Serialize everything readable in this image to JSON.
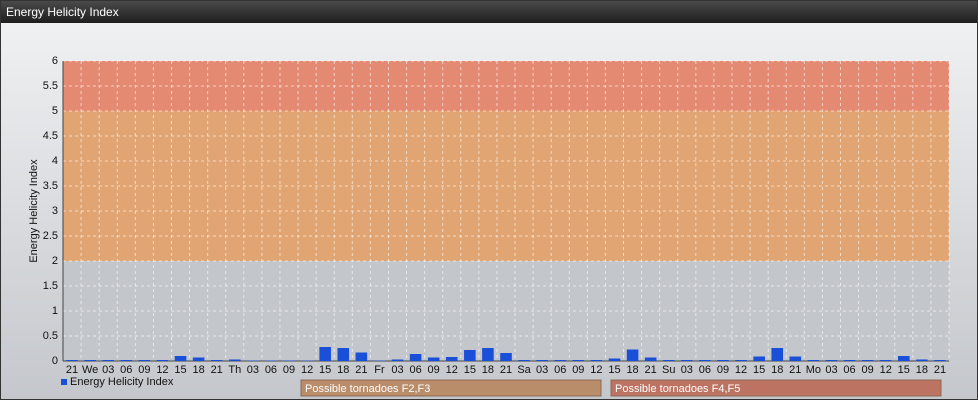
{
  "chart_data": {
    "type": "bar",
    "title": "Energy Helicity Index",
    "y_label": "Energy Helicity Index",
    "categories": [
      "21",
      "We",
      "03",
      "06",
      "09",
      "12",
      "15",
      "18",
      "21",
      "Th",
      "03",
      "06",
      "09",
      "12",
      "15",
      "18",
      "21",
      "Fr",
      "03",
      "06",
      "09",
      "12",
      "15",
      "18",
      "21",
      "Sa",
      "03",
      "06",
      "09",
      "12",
      "15",
      "18",
      "21",
      "Su",
      "03",
      "06",
      "09",
      "12",
      "15",
      "18",
      "21",
      "Mo",
      "03",
      "06",
      "09",
      "12",
      "15",
      "18",
      "21"
    ],
    "series": [
      {
        "name": "Energy Helicity Index",
        "color": "#1a4fd8",
        "values": [
          0.02,
          0.02,
          0.02,
          0.02,
          0.02,
          0.02,
          0.1,
          0.07,
          0.02,
          0.03,
          0.01,
          0.01,
          0.01,
          0.01,
          0.28,
          0.26,
          0.17,
          0.01,
          0.03,
          0.14,
          0.07,
          0.08,
          0.22,
          0.26,
          0.16,
          0.02,
          0.02,
          0.02,
          0.02,
          0.02,
          0.05,
          0.23,
          0.07,
          0.02,
          0.02,
          0.02,
          0.02,
          0.02,
          0.09,
          0.26,
          0.09,
          0.02,
          0.02,
          0.02,
          0.02,
          0.02,
          0.1,
          0.03,
          0.02
        ]
      }
    ],
    "ylim": [
      0,
      6
    ],
    "yticks": [
      0,
      0.5,
      1,
      1.5,
      2,
      2.5,
      3,
      3.5,
      4,
      4.5,
      5,
      5.5,
      6
    ],
    "grid": true,
    "bands": [
      {
        "from": 0,
        "to": 2,
        "color": "#c3c6cb"
      },
      {
        "from": 2,
        "to": 5,
        "color": "#e0a572"
      },
      {
        "from": 5,
        "to": 6,
        "color": "#e58a72"
      }
    ],
    "annotations": [
      {
        "text": "Possible tornadoes F2,F3",
        "color": "#b98c6a"
      },
      {
        "text": "Possible tornadoes F4,F5",
        "color": "#bd7362"
      }
    ]
  }
}
